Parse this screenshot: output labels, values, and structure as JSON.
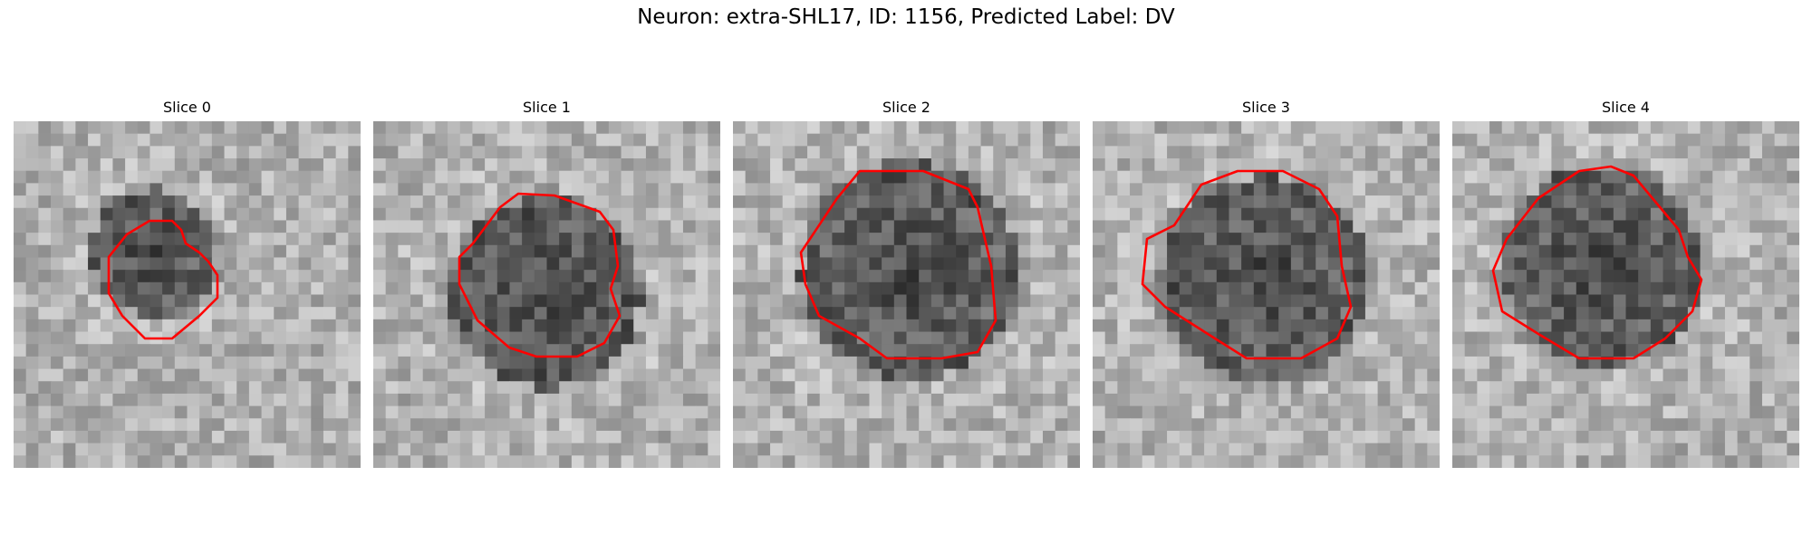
{
  "figure": {
    "title": "Neuron: extra-SHL17, ID: 1156, Predicted Label: DV"
  },
  "slices": [
    {
      "title": "Slice 0"
    },
    {
      "title": "Slice 1"
    },
    {
      "title": "Slice 2"
    },
    {
      "title": "Slice 3"
    },
    {
      "title": "Slice 4"
    }
  ],
  "colors": {
    "contour": "#ff0000",
    "background": "#ffffff"
  }
}
